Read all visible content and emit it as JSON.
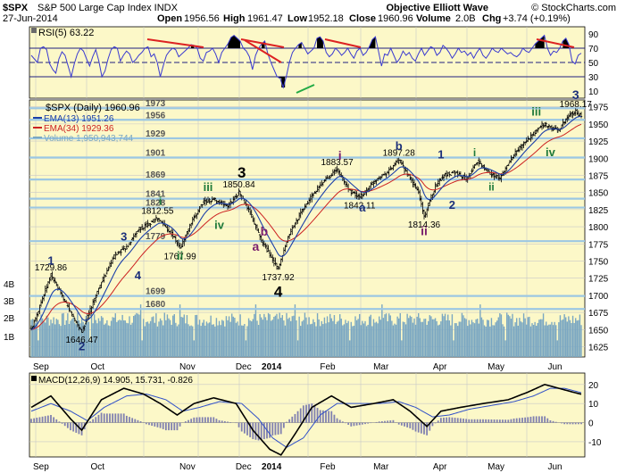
{
  "header": {
    "symbol": "$SPX",
    "name": "S&P 500 Large Cap Index INDX",
    "date": "27-Jun-2014",
    "open_label": "Open",
    "open": "1956.56",
    "high_label": "High",
    "high": "1961.47",
    "low_label": "Low",
    "low": "1952.18",
    "close_label": "Close",
    "close": "1960.96",
    "volume_label": "Volume",
    "volume": "2.0B",
    "chg_label": "Chg",
    "chg": "+3.74 (+0.19%)",
    "brand": "Objective Elliott Wave",
    "credit": "© StockCharts.com"
  },
  "colors": {
    "panel_bg": "#fcf8c8",
    "grid": "#c8c8c8",
    "fib_line": "#9cc7e3",
    "price_bar": "#000000",
    "ema13": "#1b3fa8",
    "ema34": "#cc2222",
    "volume": "#7aa7c2",
    "rsi_line": "#3a3ad0",
    "rsi_fill": "#000000",
    "macd_line": "#000000",
    "signal_line": "#3050c8",
    "hist": "#8080b0",
    "wave_navy": "#1b2f7a",
    "wave_green": "#1f7a3a",
    "wave_purple": "#7a1f6e",
    "wave_black": "#000000",
    "trend_red": "#dd2222",
    "trend_green": "#22aa44"
  },
  "rsi": {
    "label": "RSI(5) 63.22",
    "ticks": [
      "90",
      "70",
      "50",
      "30",
      "10"
    ],
    "values": [
      60,
      55,
      50,
      70,
      72,
      68,
      48,
      40,
      35,
      55,
      65,
      60,
      45,
      30,
      48,
      62,
      70,
      66,
      55,
      45,
      58,
      68,
      52,
      30,
      38,
      55,
      68,
      72,
      70,
      52,
      60,
      66,
      62,
      50,
      54,
      60,
      64,
      70,
      72,
      58,
      62,
      50,
      30,
      46,
      60,
      66,
      70,
      68,
      58,
      62,
      66,
      70,
      75,
      74,
      70,
      56,
      52,
      64,
      66,
      70,
      62,
      50,
      64,
      70,
      76,
      85,
      88,
      84,
      80,
      70,
      66,
      58,
      40,
      60,
      70,
      76,
      80,
      62,
      50,
      40,
      30,
      28,
      15,
      30,
      50,
      64,
      70,
      75,
      78,
      70,
      62,
      66,
      70,
      84,
      86,
      80,
      64,
      58,
      62,
      70,
      66,
      60,
      64,
      70,
      62,
      56,
      66,
      70,
      60,
      64,
      72,
      82,
      86,
      66,
      45,
      62,
      60,
      70,
      60,
      50,
      56,
      66,
      60,
      64,
      56,
      52,
      62,
      70,
      60,
      66,
      72,
      70,
      60,
      64,
      74,
      70,
      64,
      56,
      62,
      70,
      64,
      66,
      60,
      64,
      56,
      64,
      70,
      60,
      56,
      62,
      70,
      66,
      64,
      70,
      66,
      62,
      64,
      60,
      58,
      62,
      70,
      66,
      64,
      70,
      76,
      80,
      84,
      88,
      70,
      60,
      66,
      64,
      70,
      80,
      84,
      75,
      52,
      48,
      60,
      63
    ]
  },
  "chart_data": {
    "type": "ohlc",
    "title": "$SPX (Daily) 1960.96",
    "legend": [
      {
        "name": "EMA(13) 1951.26"
      },
      {
        "name": "EMA(34) 1929.36"
      },
      {
        "name": "Volume 1,950,943,744"
      }
    ],
    "y_ticks": [
      "1975",
      "1950",
      "1925",
      "1900",
      "1875",
      "1850",
      "1825",
      "1800",
      "1775",
      "1750",
      "1725",
      "1700",
      "1675",
      "1650",
      "1625"
    ],
    "ylim": [
      1610,
      1985
    ],
    "x_ticks": [
      "Sep",
      "Oct",
      "Nov",
      "Dec",
      "2014",
      "Feb",
      "Mar",
      "Apr",
      "May",
      "Jun"
    ],
    "volume_ticks": [
      "4B",
      "3B",
      "2B",
      "1B"
    ],
    "fib_levels": [
      {
        "value": 1973,
        "label": "1973"
      },
      {
        "value": 1956,
        "label": "1956"
      },
      {
        "value": 1929,
        "label": "1929"
      },
      {
        "value": 1901,
        "label": "1901"
      },
      {
        "value": 1869,
        "label": "1869"
      },
      {
        "value": 1841,
        "label": "1841"
      },
      {
        "value": 1828,
        "label": "1828"
      },
      {
        "value": 1779,
        "label": "1779"
      },
      {
        "value": 1699,
        "label": "1699"
      },
      {
        "value": 1680,
        "label": "1680"
      }
    ],
    "close_anchors": [
      [
        0,
        1650
      ],
      [
        14,
        1729.86
      ],
      [
        28,
        1675
      ],
      [
        36,
        1646.47
      ],
      [
        48,
        1710
      ],
      [
        60,
        1760
      ],
      [
        68,
        1770
      ],
      [
        76,
        1795
      ],
      [
        90,
        1812.55
      ],
      [
        100,
        1790
      ],
      [
        106,
        1767.99
      ],
      [
        114,
        1805
      ],
      [
        122,
        1835
      ],
      [
        130,
        1840
      ],
      [
        140,
        1830
      ],
      [
        148,
        1850.84
      ],
      [
        156,
        1820
      ],
      [
        164,
        1780
      ],
      [
        170,
        1760
      ],
      [
        176,
        1737.92
      ],
      [
        184,
        1790
      ],
      [
        192,
        1820
      ],
      [
        200,
        1845
      ],
      [
        210,
        1870
      ],
      [
        218,
        1883.57
      ],
      [
        226,
        1855
      ],
      [
        234,
        1842.11
      ],
      [
        246,
        1870
      ],
      [
        254,
        1880
      ],
      [
        262,
        1897.28
      ],
      [
        270,
        1870
      ],
      [
        276,
        1850
      ],
      [
        280,
        1814.36
      ],
      [
        288,
        1860
      ],
      [
        294,
        1875
      ],
      [
        302,
        1880
      ],
      [
        310,
        1870
      ],
      [
        318,
        1895
      ],
      [
        326,
        1880
      ],
      [
        334,
        1870
      ],
      [
        342,
        1900
      ],
      [
        350,
        1920
      ],
      [
        358,
        1935
      ],
      [
        364,
        1950
      ],
      [
        370,
        1945
      ],
      [
        376,
        1940
      ],
      [
        382,
        1960
      ],
      [
        388,
        1968.17
      ],
      [
        392,
        1960.96
      ]
    ],
    "price_labels": [
      {
        "i": 14,
        "value": 1729.86,
        "label": "1729.86",
        "pos": "above"
      },
      {
        "i": 36,
        "value": 1646.47,
        "label": "1646.47",
        "pos": "below"
      },
      {
        "i": 90,
        "value": 1812.55,
        "label": "1812.55",
        "pos": "above"
      },
      {
        "i": 106,
        "value": 1767.99,
        "label": "1767.99",
        "pos": "below"
      },
      {
        "i": 148,
        "value": 1850.84,
        "label": "1850.84",
        "pos": "above"
      },
      {
        "i": 176,
        "value": 1737.92,
        "label": "1737.92",
        "pos": "below"
      },
      {
        "i": 218,
        "value": 1883.57,
        "label": "1883.57",
        "pos": "above"
      },
      {
        "i": 234,
        "value": 1842.11,
        "label": "1842.11",
        "pos": "below"
      },
      {
        "i": 262,
        "value": 1897.28,
        "label": "1897.28",
        "pos": "above"
      },
      {
        "i": 280,
        "value": 1814.36,
        "label": "1814.36",
        "pos": "below"
      },
      {
        "i": 388,
        "value": 1968.17,
        "label": "1968.17",
        "pos": "above"
      }
    ],
    "wave_labels": [
      {
        "i": 14,
        "value": 1745,
        "label": "1",
        "color": "wave_navy",
        "size": 13
      },
      {
        "i": 36,
        "value": 1620,
        "label": "2",
        "color": "wave_navy",
        "size": 13
      },
      {
        "i": 66,
        "value": 1780,
        "label": "3",
        "color": "wave_navy",
        "size": 13
      },
      {
        "i": 76,
        "value": 1723,
        "label": "4",
        "color": "wave_navy",
        "size": 13
      },
      {
        "i": 92,
        "value": 1832,
        "label": "i",
        "color": "wave_green",
        "size": 13
      },
      {
        "i": 106,
        "value": 1752,
        "label": "ii",
        "color": "wave_green",
        "size": 13
      },
      {
        "i": 126,
        "value": 1852,
        "label": "iii",
        "color": "wave_green",
        "size": 13
      },
      {
        "i": 134,
        "value": 1797,
        "label": "iv",
        "color": "wave_green",
        "size": 13
      },
      {
        "i": 150,
        "value": 1872,
        "label": "3",
        "color": "wave_black",
        "size": 17
      },
      {
        "i": 166,
        "value": 1787,
        "label": "b",
        "color": "wave_purple",
        "size": 14
      },
      {
        "i": 160,
        "value": 1765,
        "label": "a",
        "color": "wave_purple",
        "size": 14
      },
      {
        "i": 176,
        "value": 1698,
        "label": "4",
        "color": "wave_black",
        "size": 17
      },
      {
        "i": 220,
        "value": 1898,
        "label": "i",
        "color": "wave_purple",
        "size": 14
      },
      {
        "i": 236,
        "value": 1822,
        "label": "a",
        "color": "wave_navy",
        "size": 13
      },
      {
        "i": 262,
        "value": 1912,
        "label": "b",
        "color": "wave_navy",
        "size": 13
      },
      {
        "i": 280,
        "value": 1788,
        "label": "ii",
        "color": "wave_purple",
        "size": 14
      },
      {
        "i": 292,
        "value": 1900,
        "label": "1",
        "color": "wave_navy",
        "size": 13
      },
      {
        "i": 300,
        "value": 1826,
        "label": "2",
        "color": "wave_navy",
        "size": 13
      },
      {
        "i": 316,
        "value": 1903,
        "label": "i",
        "color": "wave_green",
        "size": 12
      },
      {
        "i": 328,
        "value": 1853,
        "label": "ii",
        "color": "wave_green",
        "size": 12
      },
      {
        "i": 360,
        "value": 1962,
        "label": "iii",
        "color": "wave_green",
        "size": 13
      },
      {
        "i": 370,
        "value": 1903,
        "label": "iv",
        "color": "wave_green",
        "size": 13
      },
      {
        "i": 388,
        "value": 1986,
        "label": "3",
        "color": "wave_navy",
        "size": 14
      }
    ]
  },
  "macd": {
    "label": "MACD(12,26,9) 14.905, 15.731, -0.826",
    "ticks": [
      "20",
      "10",
      "0",
      "-10"
    ],
    "ylim": [
      -18,
      26
    ],
    "macd_anchors": [
      [
        0,
        8
      ],
      [
        14,
        14
      ],
      [
        28,
        2
      ],
      [
        36,
        -4
      ],
      [
        50,
        12
      ],
      [
        66,
        18
      ],
      [
        80,
        15
      ],
      [
        92,
        10
      ],
      [
        104,
        4
      ],
      [
        116,
        10
      ],
      [
        130,
        13
      ],
      [
        146,
        10
      ],
      [
        158,
        -4
      ],
      [
        170,
        -14
      ],
      [
        178,
        -17
      ],
      [
        188,
        -6
      ],
      [
        200,
        8
      ],
      [
        214,
        14
      ],
      [
        228,
        8
      ],
      [
        244,
        10
      ],
      [
        258,
        12
      ],
      [
        270,
        6
      ],
      [
        282,
        -2
      ],
      [
        292,
        6
      ],
      [
        306,
        8
      ],
      [
        322,
        10
      ],
      [
        340,
        12
      ],
      [
        354,
        16
      ],
      [
        366,
        20
      ],
      [
        376,
        18
      ],
      [
        386,
        16
      ],
      [
        392,
        14.9
      ]
    ],
    "signal_anchors": [
      [
        0,
        6
      ],
      [
        14,
        10
      ],
      [
        28,
        6
      ],
      [
        40,
        1
      ],
      [
        52,
        8
      ],
      [
        68,
        14
      ],
      [
        82,
        15
      ],
      [
        96,
        12
      ],
      [
        108,
        6
      ],
      [
        120,
        8
      ],
      [
        134,
        11
      ],
      [
        150,
        10
      ],
      [
        162,
        2
      ],
      [
        172,
        -8
      ],
      [
        182,
        -13
      ],
      [
        194,
        -8
      ],
      [
        206,
        4
      ],
      [
        218,
        10
      ],
      [
        232,
        10
      ],
      [
        248,
        10
      ],
      [
        262,
        11
      ],
      [
        274,
        8
      ],
      [
        286,
        3
      ],
      [
        298,
        4
      ],
      [
        312,
        7
      ],
      [
        328,
        9
      ],
      [
        344,
        11
      ],
      [
        358,
        14
      ],
      [
        370,
        18
      ],
      [
        380,
        18
      ],
      [
        392,
        15.7
      ]
    ]
  }
}
